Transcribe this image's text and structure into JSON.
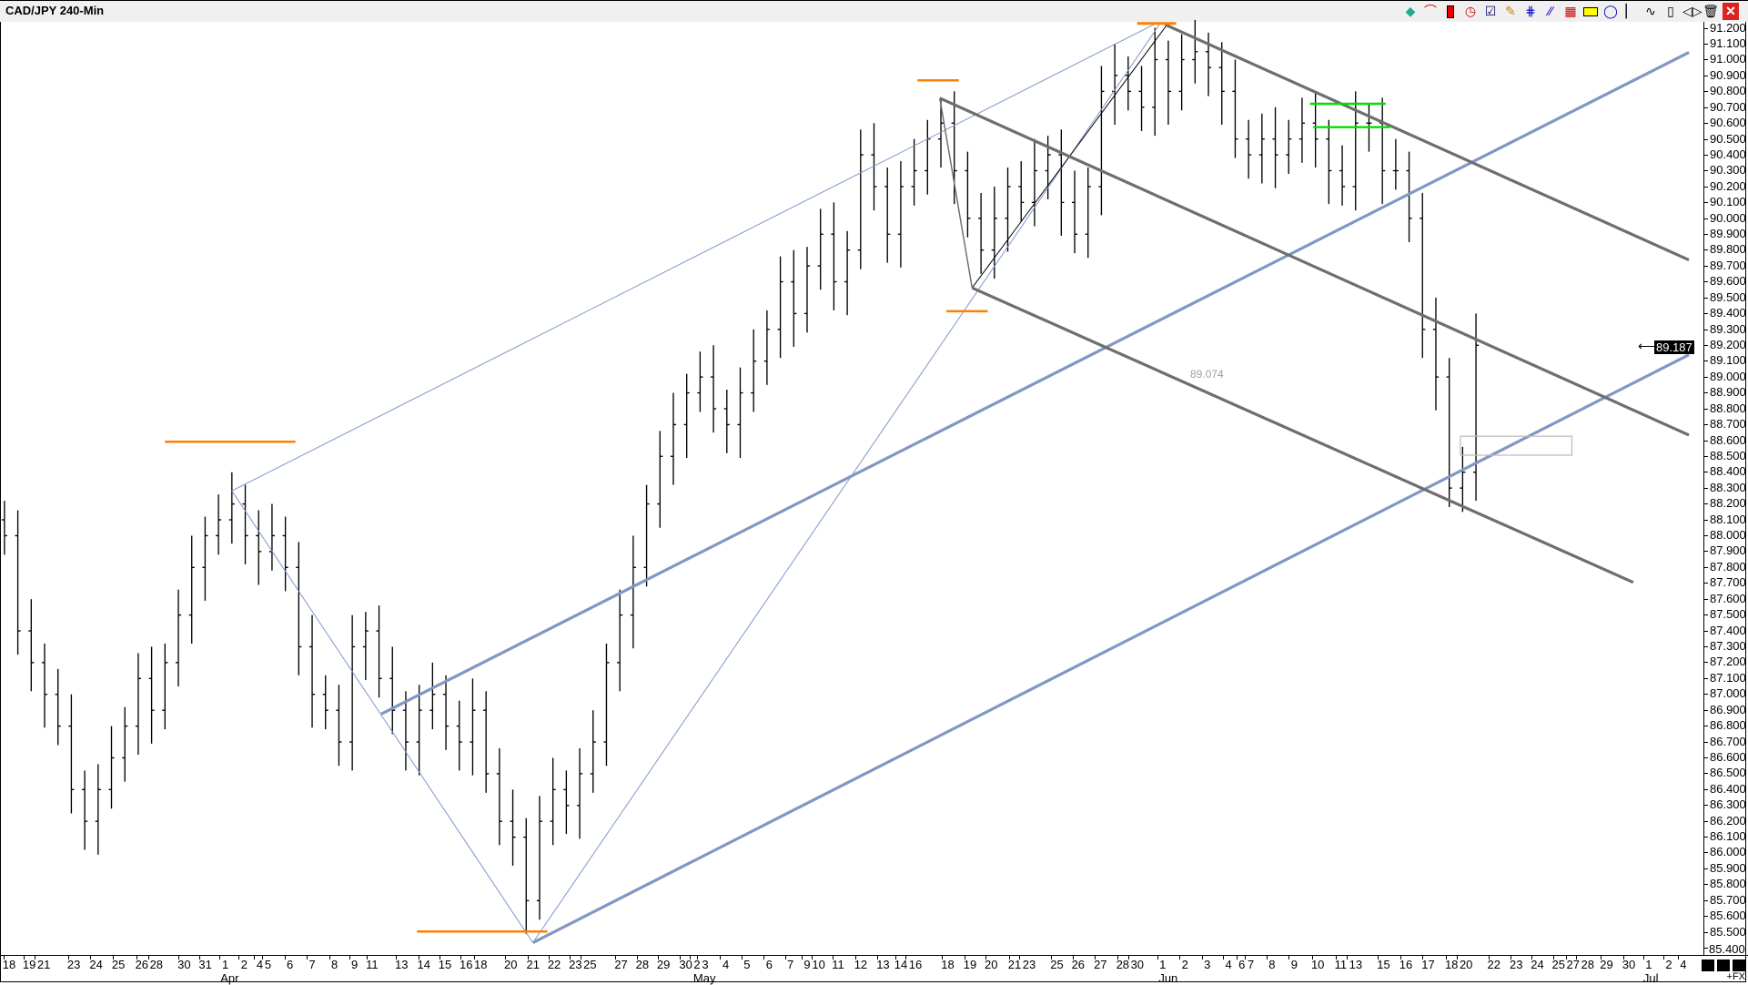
{
  "window": {
    "title": "CAD/JPY 240-Min"
  },
  "toolbar": {
    "icons": [
      "objects-icon",
      "rainbow-arcs-icon",
      "candle-icon",
      "clock-icon",
      "checklist-icon",
      "pencil-icon",
      "pitchfork-icon",
      "parallel-lines-icon",
      "grid-icon",
      "rectangle-icon",
      "circle-angle-icon",
      "bar-icon",
      "zigzag-icon",
      "candlestick-icon",
      "arrows-icon",
      "trash-icon",
      "close-icon"
    ]
  },
  "price_axis": {
    "current_price": "89.187",
    "bottom_label": "85.400"
  },
  "annotations": {
    "price_note": "89.074"
  },
  "footer": {
    "fx_label": "+FX"
  },
  "colors": {
    "trendline_blue": "#8097c4",
    "channel_gray": "#6e6e6e",
    "level_orange": "#ff7f00",
    "level_green": "#00e000",
    "bars": "#000000"
  },
  "chart_data": {
    "type": "bar",
    "subtype": "ohlc",
    "title": "CAD/JPY 240-Min",
    "ylim": [
      85.4,
      91.2
    ],
    "yticks": [
      "91.200",
      "91.100",
      "91.000",
      "90.900",
      "90.800",
      "90.700",
      "90.600",
      "90.500",
      "90.400",
      "90.300",
      "90.200",
      "90.100",
      "90.000",
      "89.900",
      "89.800",
      "89.700",
      "89.600",
      "89.500",
      "89.400",
      "89.300",
      "89.200",
      "89.100",
      "89.000",
      "88.900",
      "88.800",
      "88.700",
      "88.600",
      "88.500",
      "88.400",
      "88.300",
      "88.200",
      "88.100",
      "88.000",
      "87.900",
      "87.800",
      "87.700",
      "87.600",
      "87.500",
      "87.400",
      "87.300",
      "87.200",
      "87.100",
      "87.000",
      "86.900",
      "86.800",
      "86.700",
      "86.600",
      "86.500",
      "86.400",
      "86.300",
      "86.200",
      "86.100",
      "86.000",
      "85.900",
      "85.800",
      "85.700",
      "85.600",
      "85.500",
      "85.400"
    ],
    "xticks": [
      "18",
      "19",
      "21",
      "23",
      "24",
      "25",
      "26",
      "28",
      "30",
      "31",
      "1",
      "2",
      "4",
      "5",
      "6",
      "7",
      "8",
      "9",
      "11",
      "13",
      "14",
      "15",
      "16",
      "18",
      "20",
      "21",
      "22",
      "23",
      "25",
      "27",
      "28",
      "29",
      "30",
      "2",
      "3",
      "4",
      "5",
      "6",
      "7",
      "9",
      "10",
      "11",
      "12",
      "13",
      "14",
      "16",
      "18",
      "19",
      "20",
      "21",
      "23",
      "25",
      "26",
      "27",
      "28",
      "30",
      "1",
      "2",
      "3",
      "4",
      "6",
      "7",
      "8",
      "9",
      "10",
      "11",
      "13",
      "15",
      "16",
      "17",
      "18",
      "20",
      "22",
      "23",
      "24",
      "25",
      "27",
      "28",
      "29",
      "30",
      "1",
      "2",
      "4"
    ],
    "months": [
      "Apr",
      "May",
      "Jun",
      "Jul"
    ],
    "closes": [
      88.0,
      87.4,
      87.2,
      87.0,
      86.8,
      86.4,
      86.2,
      86.4,
      86.6,
      86.8,
      87.1,
      86.9,
      87.2,
      87.5,
      87.8,
      88.0,
      88.1,
      88.2,
      88.0,
      87.9,
      88.0,
      87.8,
      87.3,
      87.0,
      86.9,
      86.7,
      87.3,
      87.4,
      87.1,
      86.9,
      86.7,
      86.9,
      87.0,
      86.8,
      86.7,
      86.9,
      86.5,
      86.2,
      86.1,
      85.7,
      86.2,
      86.4,
      86.3,
      86.5,
      86.7,
      87.2,
      87.5,
      87.8,
      88.2,
      88.5,
      88.7,
      88.9,
      89.0,
      88.8,
      88.7,
      88.9,
      89.1,
      89.3,
      89.6,
      89.4,
      89.7,
      89.9,
      89.6,
      89.8,
      90.4,
      90.2,
      89.9,
      90.2,
      90.3,
      90.5,
      90.6,
      90.3,
      90.0,
      89.8,
      90.0,
      90.2,
      90.1,
      90.3,
      90.4,
      90.1,
      89.9,
      90.2,
      90.8,
      90.9,
      90.8,
      90.7,
      91.0,
      90.8,
      91.0,
      91.05,
      90.95,
      90.8,
      90.5,
      90.4,
      90.5,
      90.4,
      90.5,
      90.6,
      90.5,
      90.3,
      90.2,
      90.6,
      90.6,
      90.3,
      90.3,
      90.0,
      89.3,
      89.0,
      88.3,
      88.4,
      89.2
    ],
    "grid": false,
    "legend": "none"
  }
}
